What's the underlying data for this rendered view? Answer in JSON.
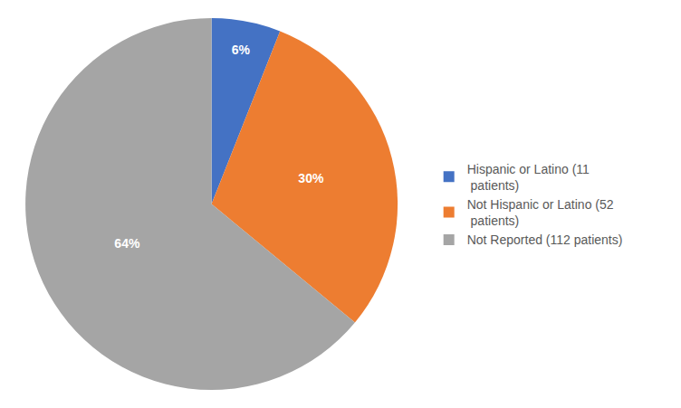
{
  "chart_data": {
    "type": "pie",
    "categories": [
      "Hispanic or Latino (11\n patients)",
      "Not Hispanic or Latino (52\n patients)",
      "Not Reported (112 patients)"
    ],
    "values": [
      6,
      30,
      64
    ],
    "value_labels": [
      "6%",
      "30%",
      "64%"
    ],
    "colors": [
      "#4472C4",
      "#ED7D31",
      "#A5A5A5"
    ],
    "data_labels": true,
    "legend": "right"
  }
}
